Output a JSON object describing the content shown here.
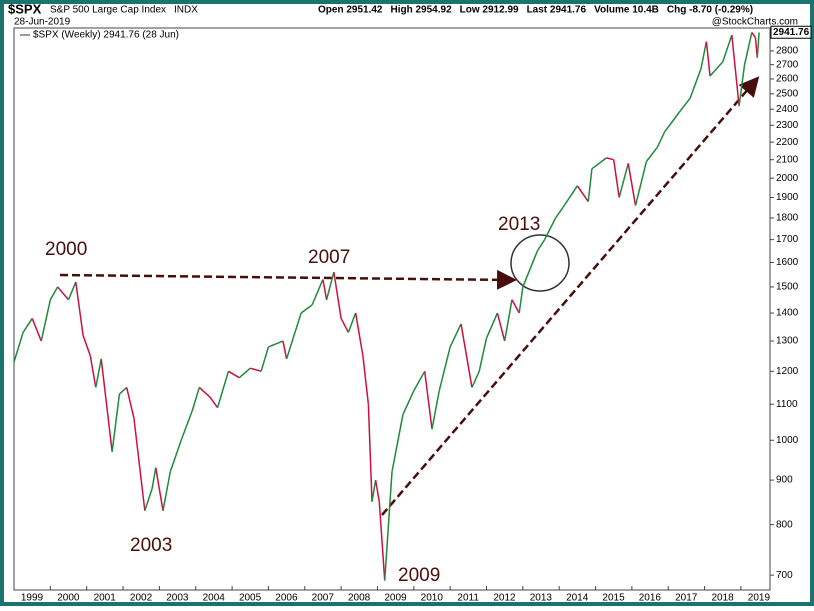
{
  "chart_data": {
    "type": "line",
    "header": {
      "symbol": "$SPX",
      "name": "S&P 500 Large Cap Index",
      "exchange": "INDX",
      "date": "28-Jun-2019",
      "stats": [
        "Open 2951.42",
        "High 2954.92",
        "Low 2912.99",
        "Last 2941.76",
        "Volume 10.4B",
        "Chg -8.70 (-0.29%)"
      ],
      "credit": "@StockCharts.com"
    },
    "legend": "$SPX (Weekly) 2941.76 (28 Jun)",
    "last_value": 2941.76,
    "last_label": "2941.76",
    "x": [
      1999.0,
      1999.25,
      1999.5,
      1999.75,
      2000.0,
      2000.2,
      2000.5,
      2000.7,
      2000.9,
      2001.1,
      2001.25,
      2001.4,
      2001.7,
      2001.9,
      2002.1,
      2002.3,
      2002.5,
      2002.6,
      2002.8,
      2002.9,
      2003.1,
      2003.3,
      2003.6,
      2003.9,
      2004.1,
      2004.4,
      2004.6,
      2004.9,
      2005.2,
      2005.5,
      2005.8,
      2006.0,
      2006.4,
      2006.5,
      2006.9,
      2007.2,
      2007.5,
      2007.6,
      2007.8,
      2008.0,
      2008.2,
      2008.4,
      2008.6,
      2008.75,
      2008.85,
      2008.95,
      2009.05,
      2009.2,
      2009.4,
      2009.7,
      2010.0,
      2010.3,
      2010.5,
      2010.7,
      2011.0,
      2011.3,
      2011.6,
      2011.8,
      2012.0,
      2012.3,
      2012.5,
      2012.7,
      2012.9,
      2013.0,
      2013.4,
      2013.6,
      2013.9,
      2014.1,
      2014.5,
      2014.8,
      2014.9,
      2015.3,
      2015.5,
      2015.65,
      2015.9,
      2016.1,
      2016.4,
      2016.7,
      2016.9,
      2017.3,
      2017.6,
      2017.9,
      2018.05,
      2018.15,
      2018.5,
      2018.75,
      2018.95,
      2019.1,
      2019.3,
      2019.4,
      2019.45,
      2019.5
    ],
    "values": [
      1230,
      1330,
      1380,
      1300,
      1450,
      1500,
      1450,
      1520,
      1320,
      1250,
      1150,
      1240,
      970,
      1130,
      1150,
      1060,
      900,
      830,
      880,
      930,
      830,
      920,
      1000,
      1080,
      1150,
      1120,
      1090,
      1200,
      1180,
      1210,
      1200,
      1280,
      1300,
      1240,
      1400,
      1430,
      1530,
      1450,
      1560,
      1380,
      1330,
      1400,
      1250,
      1100,
      850,
      900,
      850,
      690,
      920,
      1070,
      1140,
      1200,
      1030,
      1140,
      1280,
      1360,
      1150,
      1200,
      1310,
      1400,
      1300,
      1450,
      1400,
      1500,
      1650,
      1700,
      1800,
      1850,
      1960,
      1880,
      2050,
      2110,
      2100,
      1900,
      2080,
      1860,
      2090,
      2170,
      2260,
      2380,
      2470,
      2670,
      2870,
      2620,
      2720,
      2920,
      2420,
      2700,
      2940,
      2900,
      2750,
      2940
    ],
    "up_color": "#1e8a3a",
    "down_color": "#cc1040",
    "xlim": [
      1999,
      2019.8
    ],
    "xticks": [
      1999,
      2000,
      2001,
      2002,
      2003,
      2004,
      2005,
      2006,
      2007,
      2008,
      2009,
      2010,
      2011,
      2012,
      2013,
      2014,
      2015,
      2016,
      2017,
      2018,
      2019
    ],
    "ylim": [
      673,
      2975
    ],
    "log_scale": true,
    "yticks": [
      700,
      800,
      900,
      1000,
      1100,
      1200,
      1300,
      1400,
      1500,
      1600,
      1700,
      1800,
      1900,
      2000,
      2100,
      2200,
      2300,
      2400,
      2500,
      2600,
      2700,
      2800
    ],
    "annotations": [
      "2000",
      "2007",
      "2013",
      "2003",
      "2009"
    ]
  }
}
